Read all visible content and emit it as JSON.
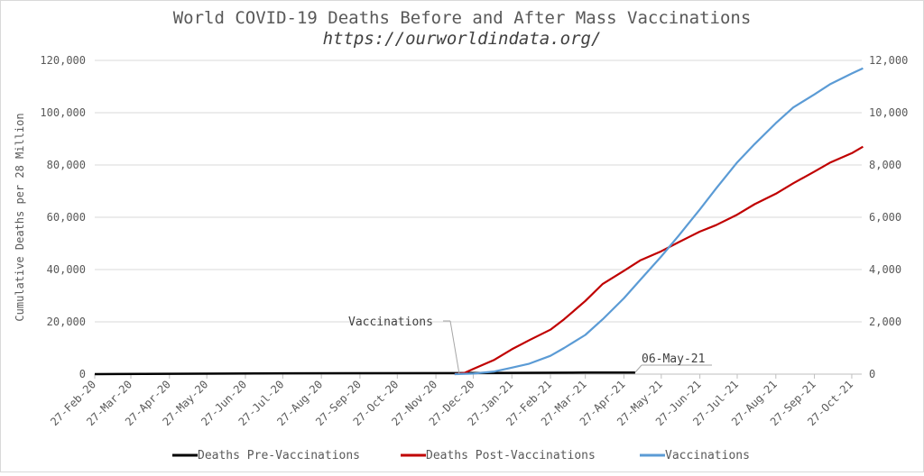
{
  "chart_data": {
    "type": "line",
    "title": "World COVID-19 Deaths Before and After Mass Vaccinations",
    "subtitle": "https://ourworldindata.org/",
    "ylabel": "Cumulative Deaths per 28 Million",
    "ylim": [
      0,
      120000
    ],
    "y_ticks": [
      "0",
      "20,000",
      "40,000",
      "60,000",
      "80,000",
      "100,000",
      "120,000"
    ],
    "y2lim": [
      0,
      12000
    ],
    "y2_ticks": [
      "0",
      "2,000",
      "4,000",
      "6,000",
      "8,000",
      "10,000",
      "12,000"
    ],
    "categories": [
      "27-Feb-20",
      "27-Mar-20",
      "27-Apr-20",
      "27-May-20",
      "27-Jun-20",
      "27-Jul-20",
      "27-Aug-20",
      "27-Sep-20",
      "27-Oct-20",
      "27-Nov-20",
      "27-Dec-20",
      "27-Jan-21",
      "27-Feb-21",
      "27-Mar-21",
      "27-Apr-21",
      "27-May-21",
      "27-Jun-21",
      "27-Jul-21",
      "27-Aug-21",
      "27-Sep-21",
      "27-Oct-21"
    ],
    "grid": true,
    "legend_position": "bottom",
    "series": [
      {
        "name": "Deaths Pre-Vaccinations",
        "color": "#000000",
        "axis": "left",
        "x": [
          "27-Feb-20",
          "27-Jul-20",
          "27-Dec-20",
          "27-Jan-21",
          "27-Mar-21",
          "06-May-21"
        ],
        "values": [
          0,
          300,
          400,
          500,
          600,
          600
        ]
      },
      {
        "name": "Deaths Post-Vaccinations",
        "color": "#c00000",
        "axis": "left",
        "x": [
          "12-Dec-20",
          "20-Dec-20",
          "27-Dec-20",
          "13-Jan-21",
          "27-Jan-21",
          "10-Feb-21",
          "27-Feb-21",
          "10-Mar-21",
          "27-Mar-21",
          "10-Apr-21",
          "27-Apr-21",
          "10-May-21",
          "27-May-21",
          "10-Jun-21",
          "27-Jun-21",
          "10-Jul-21",
          "27-Jul-21",
          "10-Aug-21",
          "27-Aug-21",
          "10-Sep-21",
          "27-Sep-21",
          "10-Oct-21",
          "27-Oct-21",
          "05-Nov-21"
        ],
        "values": [
          0,
          500,
          2000,
          5500,
          9500,
          13000,
          17000,
          21000,
          28000,
          34500,
          39500,
          43500,
          47000,
          50500,
          54500,
          57000,
          61000,
          65000,
          69000,
          73000,
          77500,
          81000,
          84500,
          87000
        ]
      },
      {
        "name": "Vaccinations",
        "color": "#5b9bd5",
        "axis": "right",
        "x": [
          "12-Dec-20",
          "27-Dec-20",
          "13-Jan-21",
          "27-Jan-21",
          "10-Feb-21",
          "27-Feb-21",
          "10-Mar-21",
          "27-Mar-21",
          "10-Apr-21",
          "27-Apr-21",
          "10-May-21",
          "27-May-21",
          "10-Jun-21",
          "27-Jun-21",
          "10-Jul-21",
          "27-Jul-21",
          "10-Aug-21",
          "27-Aug-21",
          "10-Sep-21",
          "27-Sep-21",
          "10-Oct-21",
          "27-Oct-21",
          "05-Nov-21"
        ],
        "values": [
          0,
          20,
          100,
          250,
          400,
          700,
          1000,
          1500,
          2100,
          2900,
          3600,
          4500,
          5300,
          6300,
          7100,
          8100,
          8800,
          9600,
          10200,
          10700,
          11100,
          11500,
          11700
        ]
      }
    ],
    "annotations": [
      "Vaccinations",
      "06-May-21"
    ]
  }
}
